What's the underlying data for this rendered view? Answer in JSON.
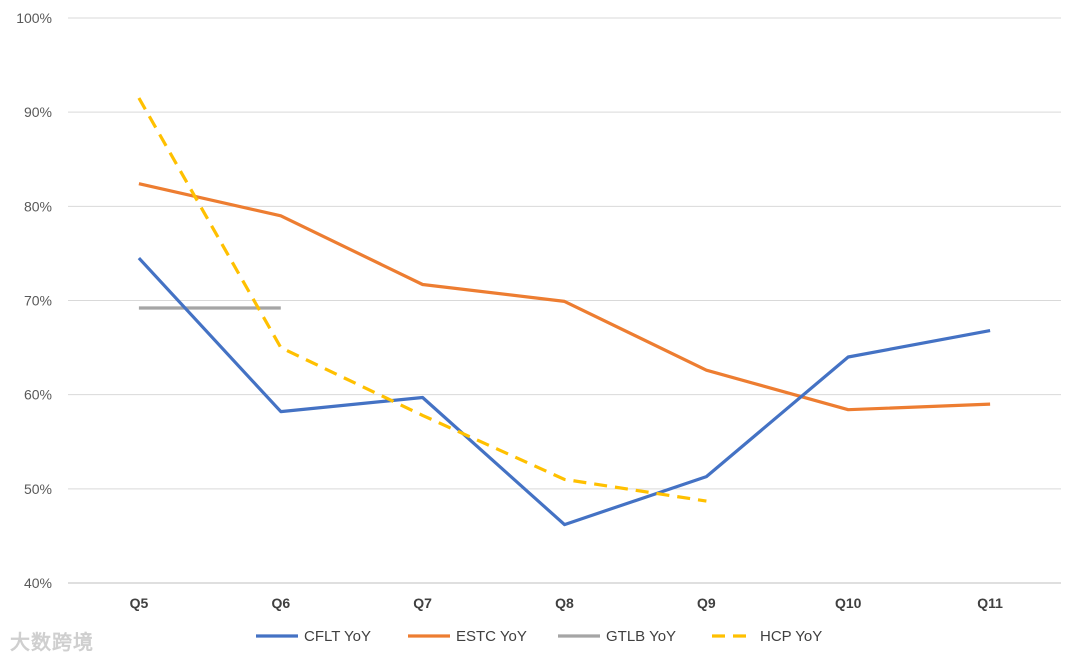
{
  "chart_data": {
    "type": "line",
    "title": "",
    "xlabel": "",
    "ylabel": "",
    "categories": [
      "Q5",
      "Q6",
      "Q7",
      "Q8",
      "Q9",
      "Q10",
      "Q11"
    ],
    "ylim": [
      0.4,
      1.0
    ],
    "yticks": [
      "40%",
      "50%",
      "60%",
      "70%",
      "80%",
      "90%",
      "100%"
    ],
    "grid": true,
    "legend_position": "bottom",
    "series": [
      {
        "name": "CFLT YoY",
        "color": "#4472C4",
        "dash": "solid",
        "values": [
          0.745,
          0.582,
          0.597,
          0.462,
          0.513,
          0.64,
          0.668
        ]
      },
      {
        "name": "ESTC YoY",
        "color": "#ED7D31",
        "dash": "solid",
        "values": [
          0.824,
          0.79,
          0.717,
          0.699,
          0.626,
          0.584,
          0.59
        ]
      },
      {
        "name": "GTLB YoY",
        "color": "#A5A5A5",
        "dash": "solid",
        "values": [
          0.692,
          0.692,
          null,
          null,
          null,
          null,
          null
        ]
      },
      {
        "name": "HCP YoY",
        "color": "#FFC000",
        "dash": "dashed",
        "values": [
          0.915,
          0.65,
          0.578,
          0.51,
          0.487,
          null,
          null
        ]
      }
    ]
  },
  "watermark": "大数跨境"
}
